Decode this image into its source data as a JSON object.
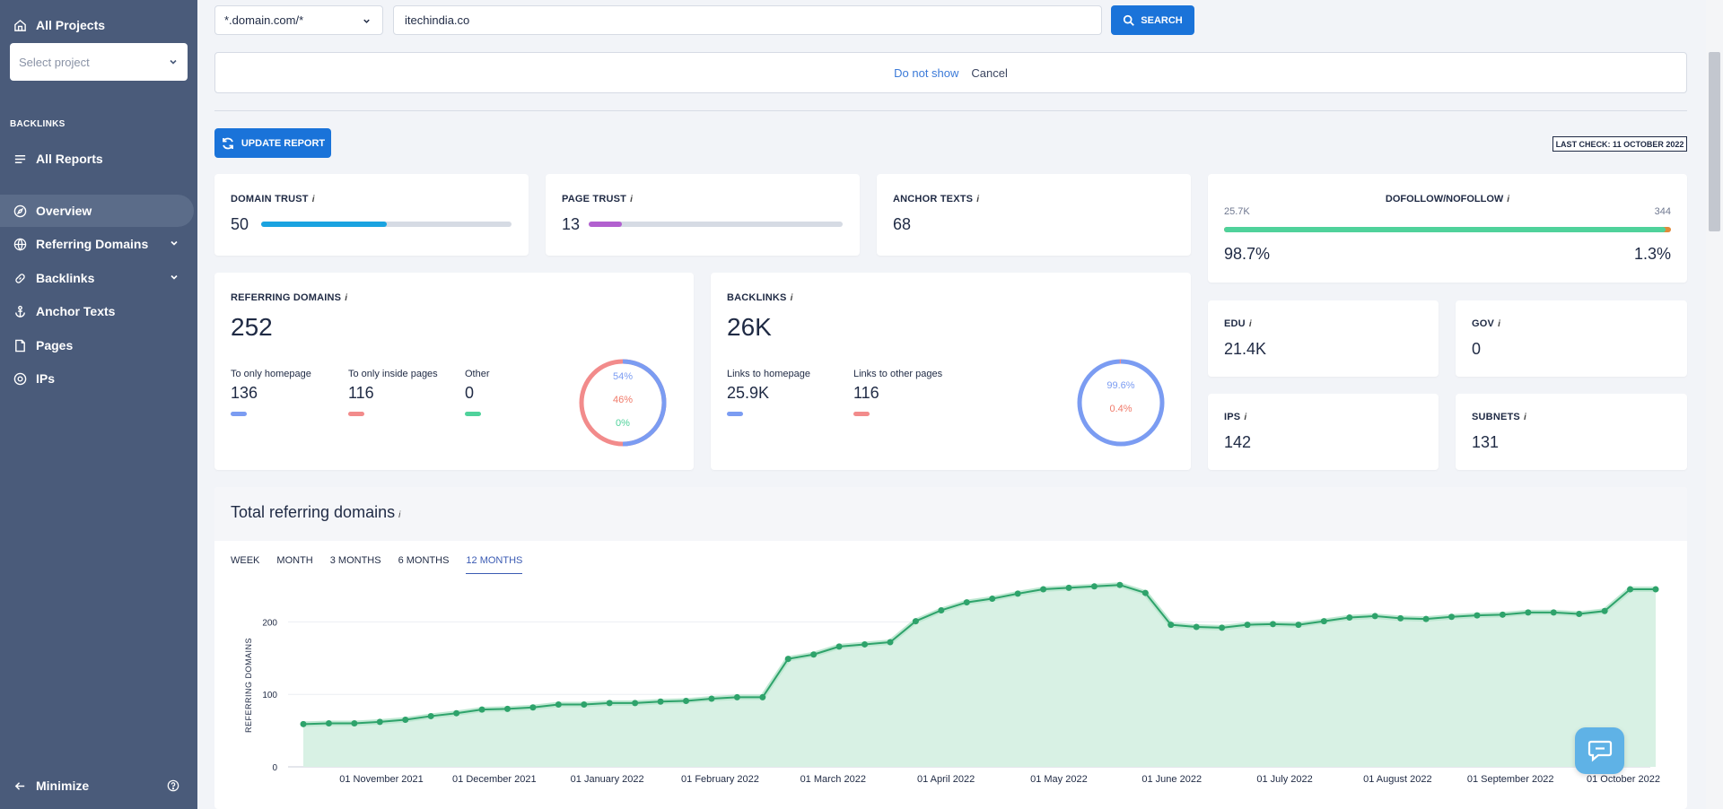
{
  "sidebar": {
    "all_projects": "All Projects",
    "select_project": "Select project",
    "section": "BACKLINKS",
    "all_reports": "All Reports",
    "items": [
      {
        "label": "Overview"
      },
      {
        "label": "Referring Domains"
      },
      {
        "label": "Backlinks"
      },
      {
        "label": "Anchor Texts"
      },
      {
        "label": "Pages"
      },
      {
        "label": "IPs"
      }
    ],
    "minimize": "Minimize"
  },
  "search": {
    "mode": "*.domain.com/*",
    "value": "itechindia.co",
    "button": "SEARCH"
  },
  "notice": {
    "do_not_show": "Do not show",
    "cancel": "Cancel"
  },
  "toolbar": {
    "update_report": "UPDATE REPORT",
    "last_check": "LAST CHECK: 11 OCTOBER 2022"
  },
  "metrics": {
    "domain_trust": {
      "label": "DOMAIN TRUST",
      "value": "50",
      "fraction": 0.5
    },
    "page_trust": {
      "label": "PAGE TRUST",
      "value": "13",
      "fraction": 0.13
    },
    "anchor_texts": {
      "label": "ANCHOR TEXTS",
      "value": "68"
    },
    "dofollow": {
      "label": "DOFOLLOW/NOFOLLOW",
      "left_count": "25.7K",
      "right_count": "344",
      "left_pct": "98.7%",
      "right_pct": "1.3%",
      "fraction": 0.987
    },
    "edu": {
      "label": "EDU",
      "value": "21.4K"
    },
    "gov": {
      "label": "GOV",
      "value": "0"
    },
    "ips": {
      "label": "IPS",
      "value": "142"
    },
    "subnets": {
      "label": "SUBNETS",
      "value": "131"
    }
  },
  "referring_domains": {
    "label": "REFERRING DOMAINS",
    "value": "252",
    "homepage_label": "To only homepage",
    "homepage_value": "136",
    "inside_label": "To only inside pages",
    "inside_value": "116",
    "other_label": "Other",
    "other_value": "0",
    "pct_homepage": "54%",
    "pct_inside": "46%",
    "pct_other": "0%"
  },
  "backlinks": {
    "label": "BACKLINKS",
    "value": "26K",
    "homepage_label": "Links to homepage",
    "homepage_value": "25.9K",
    "other_label": "Links to other pages",
    "other_value": "116",
    "pct_homepage": "99.6%",
    "pct_other": "0.4%"
  },
  "chart_section": {
    "title": "Total referring domains",
    "tabs": [
      "WEEK",
      "MONTH",
      "3 MONTHS",
      "6 MONTHS",
      "12 MONTHS"
    ],
    "active_tab": "12 MONTHS"
  },
  "colors": {
    "primary": "#1a73d9",
    "sidebar": "#4a5b7a",
    "blue": "#7b9cf2",
    "red": "#f28b8b",
    "green": "#4fd29b",
    "chart_line": "#2ea36b"
  },
  "chart_data": {
    "type": "area",
    "ylabel": "REFERRING DOMAINS",
    "ylim": [
      0,
      250
    ],
    "yticks": [
      0,
      100,
      200
    ],
    "xtick_labels": [
      "01 November 2021",
      "01 December 2021",
      "01 January 2022",
      "01 February 2022",
      "01 March 2022",
      "01 April 2022",
      "01 May 2022",
      "01 June 2022",
      "01 July 2022",
      "01 August 2022",
      "01 September 2022",
      "01 October 2022"
    ],
    "series": [
      {
        "values": [
          59,
          60,
          60,
          62,
          65,
          70,
          74,
          79,
          80,
          82,
          86,
          86,
          88,
          88,
          90,
          91,
          94,
          96,
          96,
          149,
          155,
          166,
          169,
          172,
          201,
          216,
          227,
          232,
          239,
          245,
          247,
          249,
          251,
          240,
          196,
          193,
          192,
          196,
          197,
          196,
          201,
          206,
          208,
          205,
          204,
          207,
          209,
          210,
          213,
          213,
          211,
          215,
          245,
          245
        ]
      }
    ],
    "grid": true,
    "legend": "none"
  }
}
